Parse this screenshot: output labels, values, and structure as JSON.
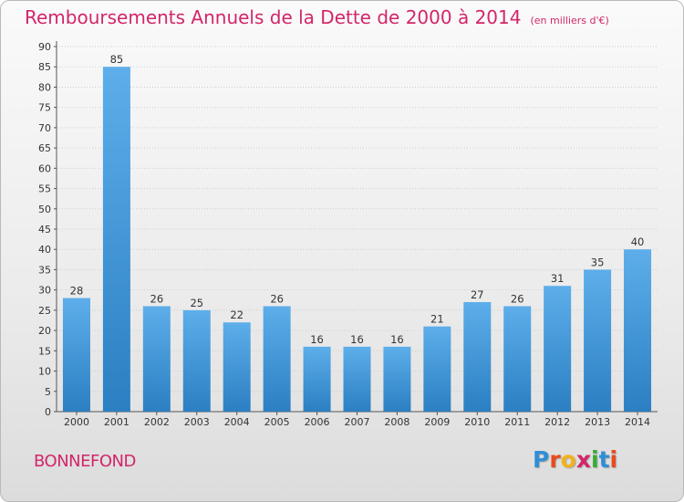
{
  "header": {
    "title": "Remboursements Annuels de la Dette de 2000 à 2014",
    "unit": "(en milliers d'€)"
  },
  "footer": {
    "town": "BONNEFOND",
    "logo_letters": [
      "P",
      "r",
      "o",
      "x",
      "i",
      "t",
      "i"
    ],
    "logo_colors": [
      "#2f8fd6",
      "#e84c1e",
      "#f2b21c",
      "#d2266a",
      "#3aaa35",
      "#2f8fd6",
      "#e84c1e"
    ]
  },
  "colors": {
    "title": "#d2266a",
    "bar_top": "#5daeea",
    "bar_bottom": "#2b7fc2"
  },
  "chart_data": {
    "type": "bar",
    "title": "Remboursements Annuels de la Dette de 2000 à 2014",
    "categories": [
      "2000",
      "2001",
      "2002",
      "2003",
      "2004",
      "2005",
      "2006",
      "2007",
      "2008",
      "2009",
      "2010",
      "2011",
      "2012",
      "2013",
      "2014"
    ],
    "values": [
      28,
      85,
      26,
      25,
      22,
      26,
      16,
      16,
      16,
      21,
      27,
      26,
      31,
      35,
      40
    ],
    "ylim": [
      0,
      90
    ],
    "yticks": [
      0,
      5,
      10,
      15,
      20,
      25,
      30,
      35,
      40,
      45,
      50,
      55,
      60,
      65,
      70,
      75,
      80,
      85,
      90
    ],
    "grid": true,
    "data_labels": true
  }
}
